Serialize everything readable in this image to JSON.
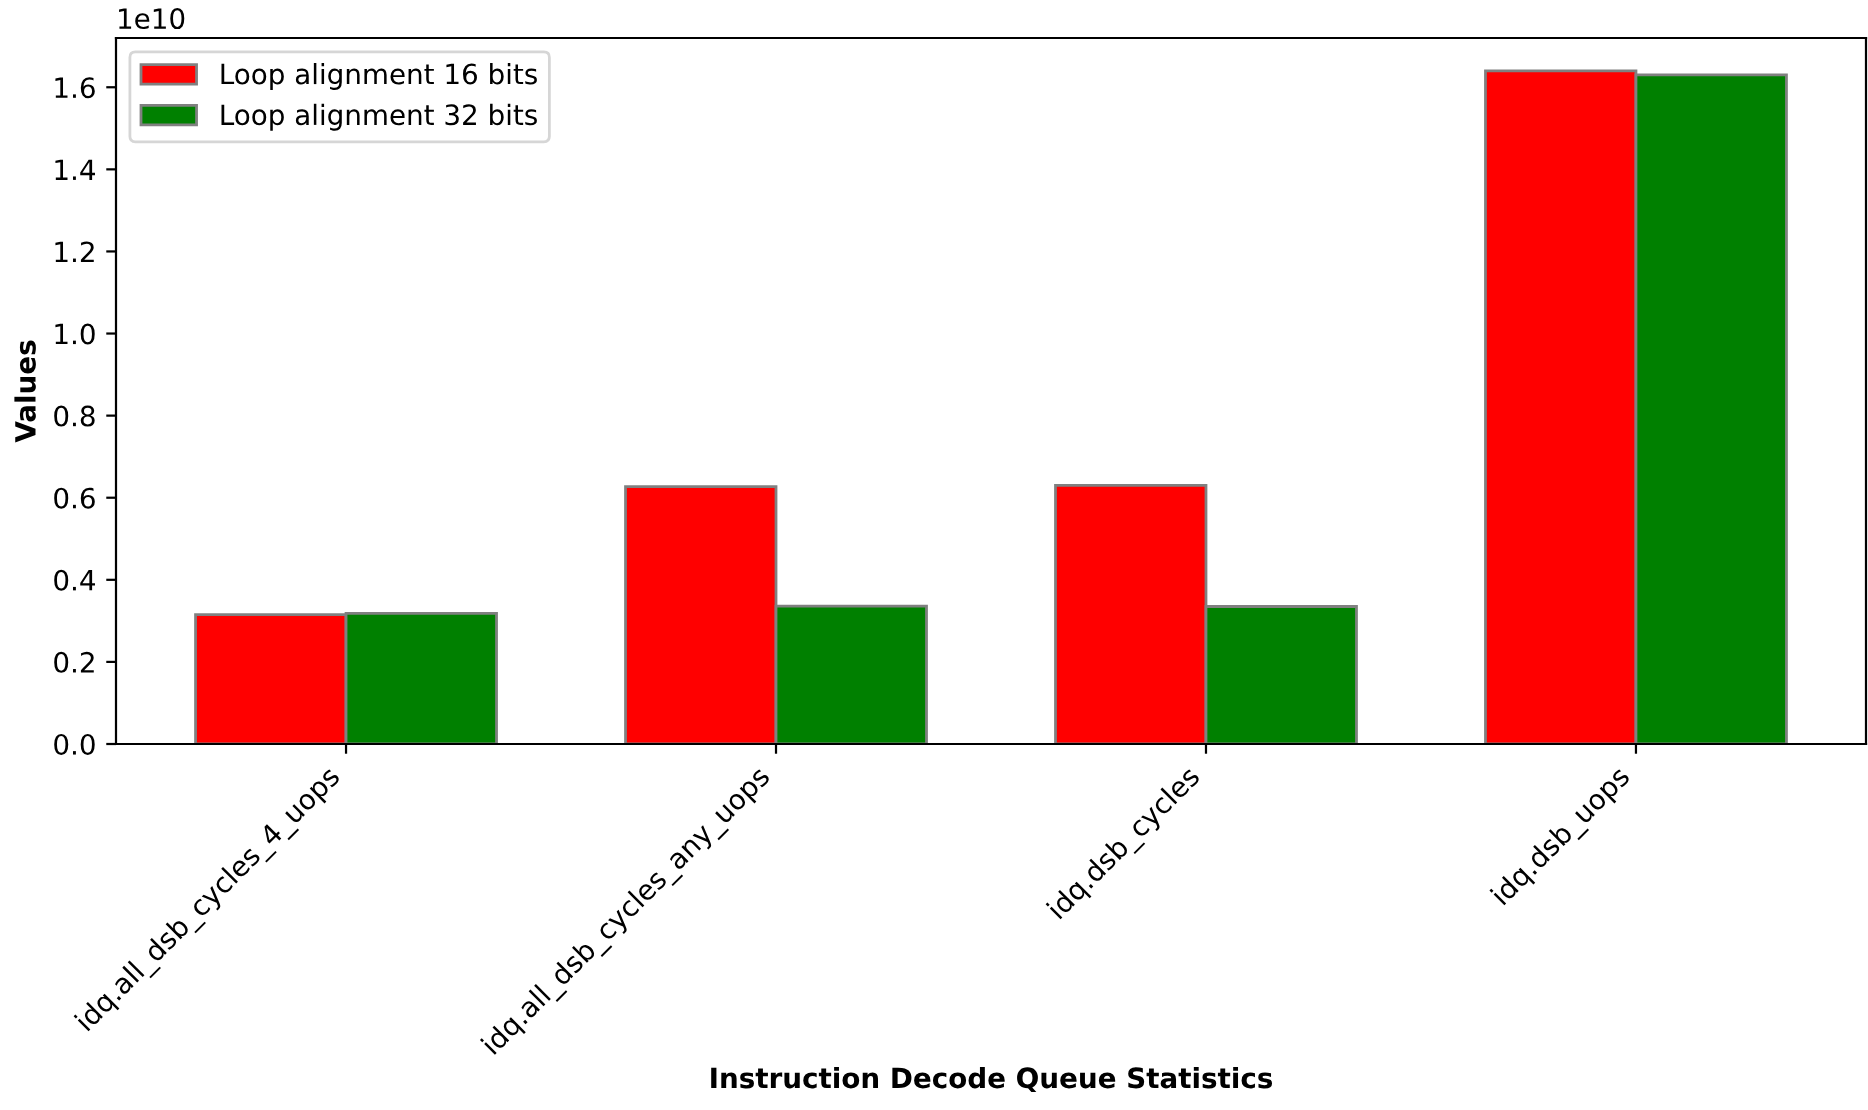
{
  "chart_data": {
    "type": "bar",
    "xlabel": "Instruction Decode Queue Statistics",
    "ylabel": "Values",
    "categories": [
      "idq.all_dsb_cycles_4_uops",
      "idq.all_dsb_cycles_any_uops",
      "idq.dsb_cycles",
      "idq.dsb_uops"
    ],
    "series": [
      {
        "name": "Loop alignment 16 bits",
        "color": "#ff0000",
        "values": [
          0.315,
          0.627,
          0.63,
          1.64
        ]
      },
      {
        "name": "Loop alignment 32 bits",
        "color": "#008000",
        "values": [
          0.318,
          0.336,
          0.335,
          1.63
        ]
      }
    ],
    "ylim": [
      0,
      1.72
    ],
    "yticks": [
      {
        "value": 0,
        "label": "0.0"
      },
      0.2,
      0.4,
      0.6,
      0.8,
      {
        "value": 1,
        "label": "1.0"
      },
      1.2,
      1.4,
      1.6
    ],
    "annotations": [
      "1e10"
    ],
    "legend": "top left",
    "grid": false
  }
}
